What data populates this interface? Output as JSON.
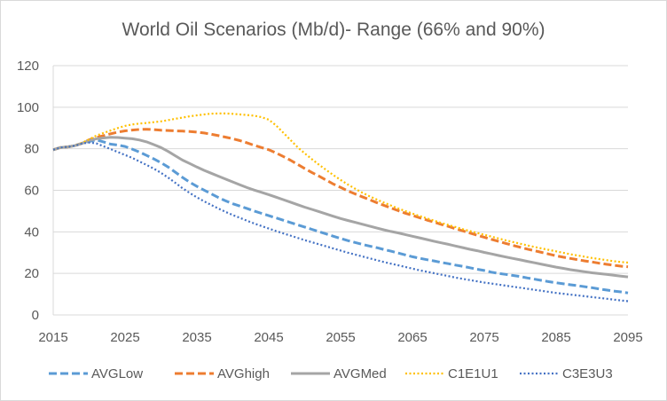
{
  "chart_data": {
    "type": "line",
    "title": "World Oil Scenarios (Mb/d)- Range (66% and 90%)",
    "xlabel": "",
    "ylabel": "",
    "xlim": [
      2015,
      2095
    ],
    "ylim": [
      0,
      120
    ],
    "x_ticks": [
      "2015",
      "2025",
      "2035",
      "2045",
      "2055",
      "2065",
      "2075",
      "2085",
      "2095"
    ],
    "y_ticks": [
      "0",
      "20",
      "40",
      "60",
      "80",
      "100",
      "120"
    ],
    "grid": "horizontal",
    "legend_position": "bottom",
    "x": [
      2015,
      2016,
      2017,
      2018,
      2019,
      2020,
      2021,
      2022,
      2023,
      2024,
      2025,
      2026,
      2027,
      2028,
      2029,
      2030,
      2031,
      2032,
      2033,
      2034,
      2035,
      2036,
      2037,
      2038,
      2039,
      2040,
      2041,
      2042,
      2043,
      2044,
      2045,
      2046,
      2047,
      2048,
      2049,
      2050,
      2051,
      2052,
      2053,
      2054,
      2055,
      2056,
      2057,
      2058,
      2059,
      2060,
      2061,
      2062,
      2063,
      2064,
      2065,
      2066,
      2067,
      2068,
      2069,
      2070,
      2071,
      2072,
      2073,
      2074,
      2075,
      2076,
      2077,
      2078,
      2079,
      2080,
      2081,
      2082,
      2083,
      2084,
      2085,
      2086,
      2087,
      2088,
      2089,
      2090,
      2091,
      2092,
      2093,
      2094,
      2095
    ],
    "series": [
      {
        "name": "AVGLow",
        "color": "#5b9bd5",
        "dash": "dashed",
        "values": [
          79.5,
          80.6,
          80.9,
          81.5,
          82.6,
          83.5,
          84.3,
          83.3,
          82.2,
          81.8,
          81.1,
          79.8,
          78.4,
          76.8,
          75.1,
          73.3,
          71.2,
          68.7,
          66.2,
          63.9,
          61.9,
          60.1,
          58.3,
          56.5,
          54.9,
          53.5,
          52.4,
          51.2,
          50.0,
          48.9,
          47.8,
          46.7,
          45.6,
          44.5,
          43.4,
          42.3,
          41.2,
          40.1,
          39.0,
          37.9,
          36.8,
          35.8,
          34.9,
          34.0,
          33.2,
          32.4,
          31.5,
          30.7,
          29.8,
          28.9,
          28.0,
          27.3,
          26.6,
          26.0,
          25.3,
          24.7,
          24.0,
          23.4,
          22.7,
          22.0,
          21.4,
          20.6,
          20.0,
          19.5,
          19.0,
          18.5,
          17.8,
          17.2,
          16.6,
          16.0,
          15.5,
          15.0,
          14.5,
          14.1,
          13.6,
          13.1,
          12.5,
          12.0,
          11.5,
          11.1,
          10.6
        ]
      },
      {
        "name": "AVGhigh",
        "color": "#ed7d31",
        "dash": "dashed",
        "values": [
          79.5,
          80.6,
          80.9,
          81.5,
          82.6,
          84.3,
          85.4,
          86.3,
          87.2,
          88.0,
          88.6,
          89.0,
          89.3,
          89.4,
          89.2,
          88.9,
          88.8,
          88.6,
          88.5,
          88.3,
          88.0,
          87.6,
          87.0,
          86.3,
          85.6,
          84.8,
          83.9,
          82.8,
          81.6,
          80.6,
          79.5,
          78.0,
          76.3,
          74.5,
          72.5,
          70.5,
          68.6,
          66.8,
          64.9,
          63.0,
          61.4,
          59.7,
          58.3,
          56.9,
          55.5,
          54.1,
          52.8,
          51.5,
          50.2,
          49.0,
          47.9,
          46.8,
          45.7,
          44.7,
          43.6,
          42.6,
          41.5,
          40.5,
          39.4,
          38.4,
          37.4,
          36.4,
          35.4,
          34.4,
          33.5,
          32.6,
          31.7,
          30.9,
          30.1,
          29.3,
          28.5,
          27.8,
          27.2,
          26.6,
          26.0,
          25.5,
          24.9,
          24.4,
          23.9,
          23.5,
          23.2
        ]
      },
      {
        "name": "AVGMed",
        "color": "#a5a5a5",
        "dash": "solid",
        "values": [
          79.5,
          80.6,
          80.9,
          81.5,
          82.6,
          84.0,
          84.8,
          85.2,
          85.5,
          85.4,
          85.1,
          84.8,
          84.2,
          83.3,
          82.0,
          80.6,
          78.7,
          76.6,
          74.5,
          72.9,
          71.2,
          69.6,
          68.2,
          66.8,
          65.4,
          64.0,
          62.6,
          61.3,
          60.1,
          59.0,
          57.9,
          56.7,
          55.5,
          54.3,
          53.1,
          51.9,
          50.8,
          49.7,
          48.6,
          47.5,
          46.4,
          45.5,
          44.6,
          43.7,
          42.8,
          41.9,
          41.0,
          40.2,
          39.5,
          38.7,
          37.9,
          37.1,
          36.3,
          35.5,
          34.7,
          34.0,
          33.2,
          32.4,
          31.6,
          30.9,
          30.1,
          29.4,
          28.6,
          27.9,
          27.2,
          26.5,
          25.8,
          25.1,
          24.4,
          23.7,
          23.0,
          22.4,
          21.8,
          21.3,
          20.8,
          20.3,
          19.9,
          19.5,
          19.1,
          18.7,
          18.3
        ]
      },
      {
        "name": "C1E1U1",
        "color": "#ffc000",
        "dash": "dotted",
        "values": [
          79.5,
          80.6,
          80.9,
          81.5,
          82.8,
          84.5,
          86.3,
          87.6,
          88.8,
          90.0,
          91.0,
          91.7,
          92.1,
          92.4,
          92.8,
          93.2,
          93.8,
          94.4,
          95.0,
          95.6,
          96.1,
          96.5,
          96.9,
          97.0,
          97.0,
          96.8,
          96.5,
          96.2,
          95.9,
          95.2,
          94.0,
          91.3,
          87.8,
          84.3,
          80.8,
          77.8,
          75.0,
          72.3,
          69.8,
          67.3,
          65.0,
          62.8,
          60.8,
          58.9,
          57.2,
          55.6,
          54.1,
          52.7,
          51.3,
          50.0,
          48.8,
          47.6,
          46.5,
          45.4,
          44.3,
          43.3,
          42.3,
          41.3,
          40.4,
          39.5,
          38.6,
          37.7,
          36.8,
          35.9,
          35.1,
          34.3,
          33.5,
          32.7,
          32.0,
          31.3,
          30.6,
          29.9,
          29.2,
          28.6,
          28.0,
          27.4,
          26.9,
          26.4,
          25.9,
          25.5,
          25.2
        ]
      },
      {
        "name": "C3E3U3",
        "color": "#4472c4",
        "dash": "dotted",
        "values": [
          79.5,
          80.6,
          80.9,
          81.5,
          82.5,
          83.0,
          82.6,
          81.2,
          79.8,
          78.4,
          77.0,
          75.6,
          73.9,
          72.2,
          70.4,
          68.4,
          66.1,
          63.6,
          61.0,
          58.7,
          56.6,
          54.7,
          52.9,
          51.2,
          49.6,
          48.1,
          46.7,
          45.3,
          44.0,
          42.8,
          41.6,
          40.4,
          39.3,
          38.2,
          37.1,
          36.0,
          35.0,
          34.0,
          33.0,
          32.0,
          31.0,
          30.0,
          29.1,
          28.2,
          27.3,
          26.4,
          25.5,
          24.7,
          23.9,
          23.1,
          22.3,
          21.5,
          20.8,
          20.1,
          19.4,
          18.7,
          18.0,
          17.4,
          16.8,
          16.2,
          15.6,
          15.1,
          14.6,
          14.1,
          13.6,
          13.1,
          12.6,
          12.1,
          11.6,
          11.1,
          10.6,
          10.2,
          9.8,
          9.4,
          9.0,
          8.6,
          8.2,
          7.8,
          7.4,
          7.0,
          6.6
        ]
      }
    ]
  }
}
